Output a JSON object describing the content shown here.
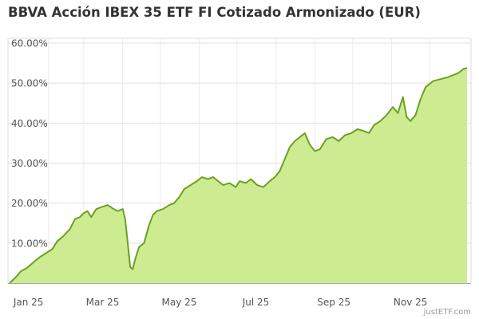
{
  "chart_data": {
    "type": "area",
    "title": "BBVA Acción IBEX 35 ETF FI Cotizado Armonizado (EUR)",
    "xlabel": "",
    "ylabel": "",
    "x_ticks": [
      "Jan 25",
      "Mar 25",
      "May 25",
      "Jul 25",
      "Sep 25",
      "Nov 25"
    ],
    "y_ticks": [
      "10.00%",
      "20.00%",
      "30.00%",
      "40.00%",
      "50.00%",
      "60.00%"
    ],
    "ylim": [
      0,
      60
    ],
    "xlim": [
      "2025-01-01",
      "2025-12-31"
    ],
    "grid": true,
    "colors": {
      "line": "#6aa121",
      "fill": "#cdec91"
    },
    "series": [
      {
        "points": [
          [
            "2025-01-01",
            0.0
          ],
          [
            "2025-01-06",
            1.5
          ],
          [
            "2025-01-10",
            3.0
          ],
          [
            "2025-01-15",
            3.8
          ],
          [
            "2025-01-20",
            5.2
          ],
          [
            "2025-01-25",
            6.5
          ],
          [
            "2025-01-30",
            7.5
          ],
          [
            "2025-02-04",
            8.5
          ],
          [
            "2025-02-08",
            10.5
          ],
          [
            "2025-02-12",
            11.5
          ],
          [
            "2025-02-15",
            12.5
          ],
          [
            "2025-02-18",
            13.5
          ],
          [
            "2025-02-22",
            16.0
          ],
          [
            "2025-02-26",
            16.5
          ],
          [
            "2025-03-01",
            17.5
          ],
          [
            "2025-03-04",
            18.0
          ],
          [
            "2025-03-07",
            16.5
          ],
          [
            "2025-03-11",
            18.5
          ],
          [
            "2025-03-15",
            19.0
          ],
          [
            "2025-03-20",
            19.5
          ],
          [
            "2025-03-25",
            18.5
          ],
          [
            "2025-03-28",
            18.0
          ],
          [
            "2025-04-01",
            18.5
          ],
          [
            "2025-04-03",
            16.0
          ],
          [
            "2025-04-05",
            10.0
          ],
          [
            "2025-04-07",
            4.0
          ],
          [
            "2025-04-09",
            3.5
          ],
          [
            "2025-04-11",
            6.0
          ],
          [
            "2025-04-14",
            9.0
          ],
          [
            "2025-04-18",
            10.0
          ],
          [
            "2025-04-22",
            14.5
          ],
          [
            "2025-04-25",
            17.0
          ],
          [
            "2025-04-28",
            18.0
          ],
          [
            "2025-05-03",
            18.5
          ],
          [
            "2025-05-08",
            19.5
          ],
          [
            "2025-05-12",
            20.0
          ],
          [
            "2025-05-16",
            21.5
          ],
          [
            "2025-05-20",
            23.5
          ],
          [
            "2025-05-25",
            24.5
          ],
          [
            "2025-05-30",
            25.5
          ],
          [
            "2025-06-03",
            26.5
          ],
          [
            "2025-06-08",
            26.0
          ],
          [
            "2025-06-12",
            26.5
          ],
          [
            "2025-06-16",
            25.5
          ],
          [
            "2025-06-20",
            24.5
          ],
          [
            "2025-06-25",
            25.0
          ],
          [
            "2025-06-30",
            24.0
          ],
          [
            "2025-07-03",
            25.5
          ],
          [
            "2025-07-08",
            25.0
          ],
          [
            "2025-07-12",
            26.0
          ],
          [
            "2025-07-17",
            24.5
          ],
          [
            "2025-07-22",
            24.0
          ],
          [
            "2025-07-27",
            25.5
          ],
          [
            "2025-07-31",
            26.5
          ],
          [
            "2025-08-04",
            28.0
          ],
          [
            "2025-08-08",
            31.0
          ],
          [
            "2025-08-12",
            34.0
          ],
          [
            "2025-08-16",
            35.5
          ],
          [
            "2025-08-20",
            36.5
          ],
          [
            "2025-08-24",
            37.5
          ],
          [
            "2025-08-28",
            34.5
          ],
          [
            "2025-09-01",
            33.0
          ],
          [
            "2025-09-05",
            33.5
          ],
          [
            "2025-09-10",
            36.0
          ],
          [
            "2025-09-15",
            36.5
          ],
          [
            "2025-09-20",
            35.5
          ],
          [
            "2025-09-25",
            37.0
          ],
          [
            "2025-09-30",
            37.5
          ],
          [
            "2025-10-05",
            38.5
          ],
          [
            "2025-10-10",
            38.0
          ],
          [
            "2025-10-14",
            37.5
          ],
          [
            "2025-10-18",
            39.5
          ],
          [
            "2025-10-23",
            40.5
          ],
          [
            "2025-10-28",
            42.0
          ],
          [
            "2025-11-02",
            44.0
          ],
          [
            "2025-11-06",
            42.5
          ],
          [
            "2025-11-10",
            46.5
          ],
          [
            "2025-11-13",
            41.5
          ],
          [
            "2025-11-16",
            40.5
          ],
          [
            "2025-11-20",
            42.0
          ],
          [
            "2025-11-24",
            46.0
          ],
          [
            "2025-11-28",
            49.0
          ],
          [
            "2025-12-04",
            50.5
          ],
          [
            "2025-12-10",
            51.0
          ],
          [
            "2025-12-16",
            51.5
          ],
          [
            "2025-12-20",
            52.0
          ],
          [
            "2025-12-24",
            52.5
          ],
          [
            "2025-12-28",
            53.5
          ],
          [
            "2025-12-31",
            53.8
          ]
        ]
      }
    ]
  },
  "credit": "justETF.com"
}
